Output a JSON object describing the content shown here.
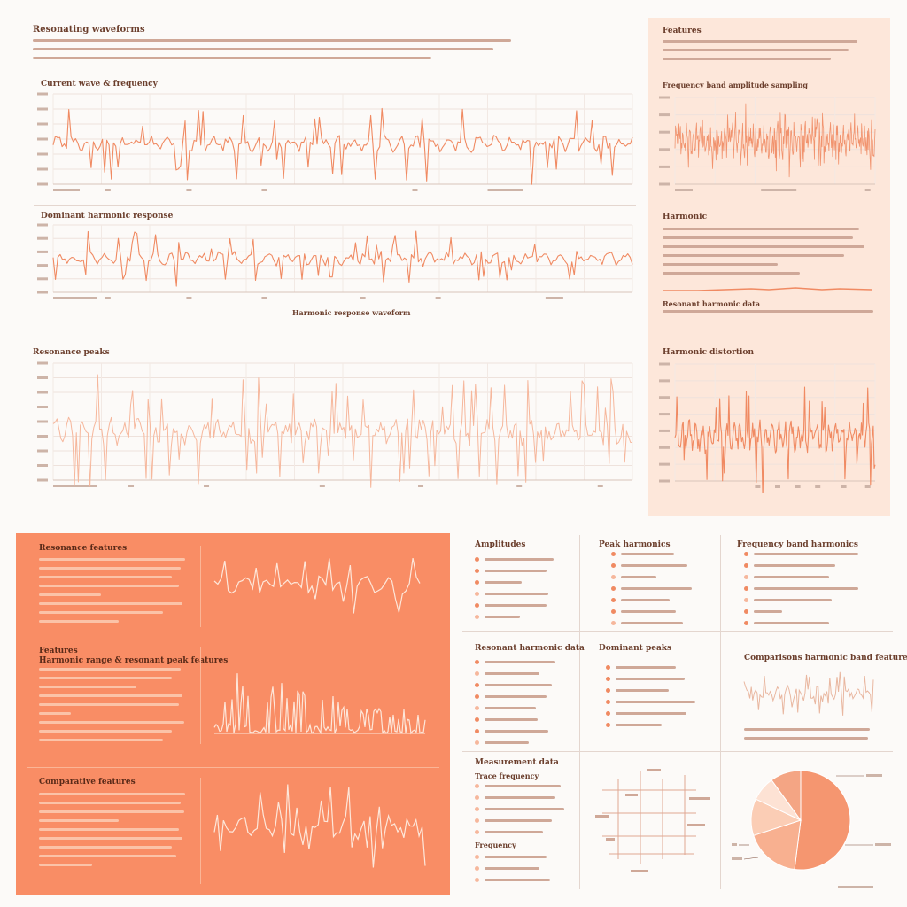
{
  "page": {
    "title": "Resonating waveforms",
    "sidebar_title": "Features",
    "section_labels": {
      "chart_a": "Current wave & frequency",
      "chart_b": "Dominant harmonic response",
      "chart_c": "Resonance peaks",
      "chart_d": "Frequency band amplitude sampling",
      "chart_e": "Harmonic",
      "chart_f": "Harmonic distortion",
      "caption_b": "Harmonic response waveform",
      "orange_1": "Resonance features",
      "orange_2_title": "Features",
      "orange_2_sub": "Harmonic range & resonant peak features",
      "orange_3": "Comparative features",
      "list_1": "Amplitudes",
      "list_2": "Peak harmonics",
      "list_3": "Frequency band harmonics",
      "list_4": "Resonant harmonic data",
      "list_5": "Dominant peaks",
      "chart_g": "Comparisons harmonic band features",
      "list_6": "Measurement data",
      "list_6_sub": "Trace frequency",
      "list_7": "Frequency"
    }
  },
  "colors": {
    "accent": "#f08a62",
    "accent_light": "#f6b79c",
    "accent_pale": "#fde7da",
    "panel_orange": "#f98d65",
    "ink": "#6b3e2c"
  },
  "chart_data": [
    {
      "id": "a",
      "type": "line",
      "title": "Current wave & frequency",
      "series": [
        {
          "values": []
        }
      ]
    },
    {
      "id": "b",
      "type": "line",
      "title": "Dominant harmonic response",
      "series": [
        {
          "values": []
        }
      ]
    },
    {
      "id": "c",
      "type": "line",
      "title": "Resonance peaks",
      "series": [
        {
          "values": []
        }
      ]
    },
    {
      "id": "d",
      "type": "line",
      "title": "Frequency band amplitude sampling",
      "series": [
        {
          "values": []
        }
      ]
    },
    {
      "id": "f",
      "type": "line",
      "title": "Harmonic distortion",
      "series": [
        {
          "values": []
        }
      ]
    },
    {
      "id": "pie",
      "type": "pie",
      "values": [
        52,
        18,
        12,
        8,
        10
      ]
    }
  ]
}
